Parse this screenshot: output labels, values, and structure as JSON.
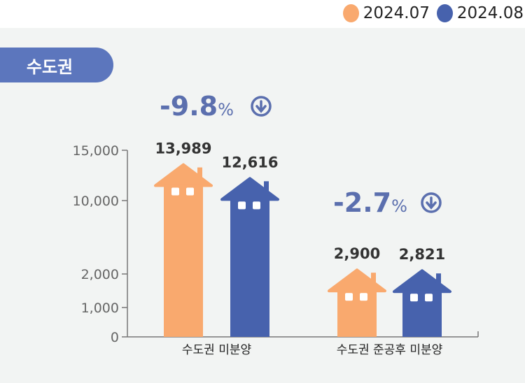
{
  "legend": [
    {
      "label": "2024.07",
      "color": "#F9A96E"
    },
    {
      "label": "2024.08",
      "color": "#4762AD"
    }
  ],
  "region_label": "수도권",
  "chart_data": {
    "type": "bar",
    "categories": [
      "수도권 미분양",
      "수도권 준공후 미분양"
    ],
    "series": [
      {
        "name": "2024.07",
        "values": [
          13989,
          2900
        ],
        "labels": [
          "13,989",
          "2,900"
        ]
      },
      {
        "name": "2024.08",
        "values": [
          12616,
          2821
        ],
        "labels": [
          "12,616",
          "2,821"
        ]
      }
    ],
    "change_labels": [
      {
        "value": "-9.8",
        "unit": "%"
      },
      {
        "value": "-2.7",
        "unit": "%"
      }
    ],
    "y_ticks": [
      0,
      1000,
      2000,
      10000,
      15000
    ],
    "y_tick_labels": [
      "0",
      "1,000",
      "2,000",
      "10,000",
      "15,000"
    ],
    "ylim": [
      0,
      15000
    ],
    "axis_break": true
  }
}
